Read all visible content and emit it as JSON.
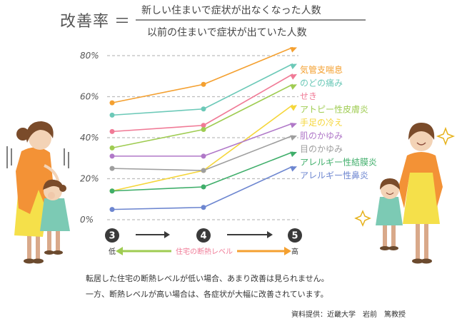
{
  "header": {
    "formula_label": "改善率",
    "equals": "＝",
    "numerator": "新しい住まいで症状が出なくなった人数",
    "denominator": "以前の住まいで症状が出ていた人数"
  },
  "chart_data": {
    "type": "line",
    "x": [
      3,
      4,
      5
    ],
    "x_tick_labels": [
      "3",
      "4",
      "5"
    ],
    "x_low_label": "低",
    "x_high_label": "高",
    "xlabel": "住宅の断熱レベル",
    "ylim": [
      0,
      80
    ],
    "y_ticks": [
      0,
      20,
      40,
      60,
      80
    ],
    "y_tick_labels": [
      "0%",
      "20%",
      "40%",
      "60%",
      "80%"
    ],
    "grid": true,
    "legend_position": "right",
    "series": [
      {
        "name": "気管支喘息",
        "color": "#f4a030",
        "values": [
          57,
          66,
          84
        ]
      },
      {
        "name": "のどの痛み",
        "color": "#6cc9b8",
        "values": [
          51,
          54,
          76
        ]
      },
      {
        "name": "せき",
        "color": "#f07a96",
        "values": [
          43,
          46,
          71
        ]
      },
      {
        "name": "アトピー性皮膚炎",
        "color": "#9fcc52",
        "values": [
          35,
          44,
          66
        ]
      },
      {
        "name": "手足の冷え",
        "color": "#f5d63a",
        "values": [
          14,
          24,
          56
        ]
      },
      {
        "name": "肌のかゆみ",
        "color": "#b078c8",
        "values": [
          31,
          31,
          47
        ]
      },
      {
        "name": "目のかゆみ",
        "color": "#9e9e9e",
        "values": [
          25,
          24,
          41
        ]
      },
      {
        "name": "アレルギー性結膜炎",
        "color": "#3fae6a",
        "values": [
          14,
          16,
          33
        ]
      },
      {
        "name": "アレルギー性鼻炎",
        "color": "#6d86d0",
        "values": [
          5,
          6,
          26
        ]
      }
    ]
  },
  "caption": {
    "line1": "転居した住宅の断熱レベルが低い場合、あまり改善は見られません。",
    "line2": "一方、断熱レベルが高い場合は、各症状が大幅に改善されています。"
  },
  "source": "資料提供：近畿大学　岩前　篤教授"
}
